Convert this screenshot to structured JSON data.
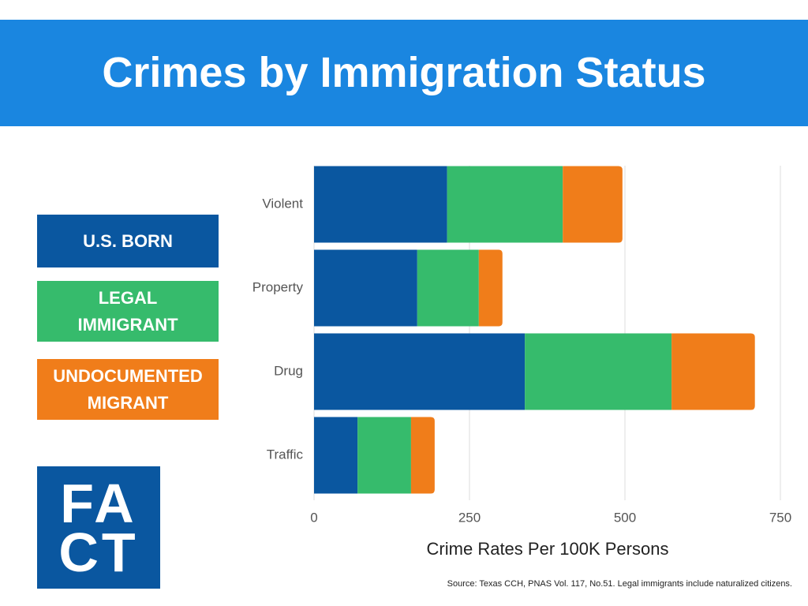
{
  "chart_data": {
    "type": "stacked-barh",
    "title": "Crimes by Immigration Status",
    "categories": [
      "Violent",
      "Property",
      "Drug",
      "Traffic"
    ],
    "series": [
      {
        "name": "U.S. BORN",
        "color": "#0a57a0",
        "values": [
          214,
          166,
          339,
          70
        ]
      },
      {
        "name": "LEGAL IMMIGRANT",
        "color": "#36bb6c",
        "values": [
          186,
          99,
          236,
          86
        ]
      },
      {
        "name": "UNDOCUMENTED MIGRANT",
        "color": "#f07d1a",
        "values": [
          96,
          38,
          134,
          38
        ]
      }
    ],
    "xlim": [
      0,
      750
    ],
    "xticks": [
      0,
      250,
      500,
      750
    ],
    "grid": true,
    "xlabel": "Crime Rates Per 100K Persons",
    "source": "Source: Texas CCH, PNAS Vol. 117, No.51. Legal immigrants include naturalized citizens."
  },
  "logo": [
    "FA",
    "CT"
  ]
}
